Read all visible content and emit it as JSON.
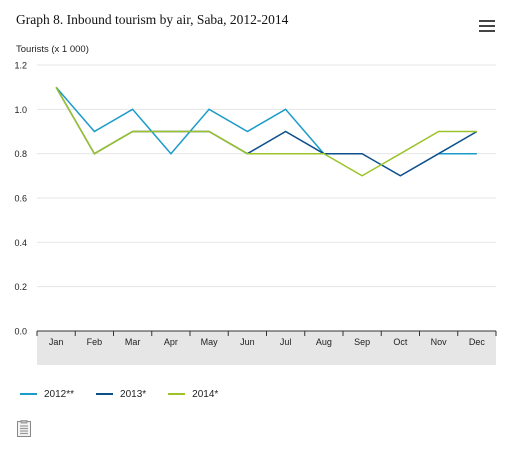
{
  "chart_data": {
    "type": "line",
    "title": "Graph 8. Inbound tourism by air, Saba, 2012-2014",
    "ylabel": "Tourists (x 1 000)",
    "xlabel": "",
    "categories": [
      "Jan",
      "Feb",
      "Mar",
      "Apr",
      "May",
      "Jun",
      "Jul",
      "Aug",
      "Sep",
      "Oct",
      "Nov",
      "Dec"
    ],
    "ylim": [
      0,
      1.2
    ],
    "yticks": [
      "0.0",
      "0.2",
      "0.4",
      "0.6",
      "0.8",
      "1.0",
      "1.2"
    ],
    "grid": true,
    "legend_position": "bottom-left",
    "series": [
      {
        "name": "2012**",
        "color": "#1a9bc8",
        "values": [
          1.1,
          0.9,
          1.0,
          0.8,
          1.0,
          0.9,
          1.0,
          0.8,
          null,
          null,
          0.8,
          0.8
        ]
      },
      {
        "name": "2013*",
        "color": "#0b4f8c",
        "values": [
          1.1,
          0.8,
          0.9,
          0.9,
          0.9,
          0.8,
          0.9,
          0.8,
          0.8,
          0.7,
          0.8,
          0.9
        ]
      },
      {
        "name": "2014*",
        "color": "#9cc42a",
        "values": [
          1.1,
          0.8,
          0.9,
          0.9,
          0.9,
          0.8,
          0.8,
          0.8,
          0.7,
          0.8,
          0.9,
          0.9
        ]
      }
    ]
  },
  "menu": {
    "icon": "hamburger-menu-icon"
  },
  "export": {
    "icon": "export-document-icon"
  },
  "colors": {
    "grid": "#e6e6e6",
    "axis_band": "#e6e6e6",
    "axis_line": "#333333"
  }
}
